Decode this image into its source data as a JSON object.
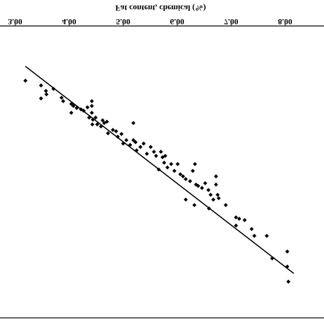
{
  "chart_data": {
    "type": "scatter",
    "title": "Fat content, chemical (%)",
    "x": [
      3.19,
      3.48,
      3.57,
      3.58,
      3.48,
      3.71,
      3.86,
      3.89,
      4.04,
      4.08,
      4.14,
      4.04,
      4.22,
      4.27,
      4.34,
      4.42,
      4.42,
      4.42,
      4.37,
      4.44,
      4.49,
      4.43,
      4.52,
      4.62,
      4.65,
      4.7,
      4.59,
      4.72,
      4.81,
      4.87,
      4.9,
      4.97,
      5.0,
      5.06,
      5.13,
      5.19,
      5.19,
      5.23,
      5.25,
      5.32,
      5.38,
      5.44,
      5.51,
      5.57,
      5.61,
      5.7,
      5.73,
      5.76,
      5.78,
      5.82,
      5.89,
      5.66,
      5.95,
      6.01,
      6.06,
      6.11,
      6.16,
      6.24,
      6.29,
      6.33,
      6.35,
      6.39,
      6.46,
      6.52,
      6.58,
      6.62,
      6.72,
      6.72,
      6.75,
      6.67,
      6.77,
      6.32,
      6.16,
      6.59,
      6.9,
      7.09,
      7.15,
      7.09,
      7.25,
      7.38,
      7.43,
      7.66,
      7.76,
      8.04,
      8.04,
      8.06
    ],
    "values": [
      347,
      340,
      332,
      327,
      321,
      335,
      322,
      317,
      313,
      310,
      307,
      300,
      305,
      303,
      308,
      317,
      310,
      300,
      293,
      290,
      293,
      283,
      283,
      289,
      285,
      287,
      280,
      270,
      275,
      273,
      265,
      269,
      255,
      260,
      253,
      285,
      260,
      257,
      245,
      250,
      255,
      240,
      250,
      243,
      237,
      243,
      235,
      227,
      237,
      220,
      225,
      217,
      215,
      225,
      210,
      207,
      203,
      200,
      215,
      225,
      195,
      193,
      190,
      197,
      187,
      180,
      207,
      195,
      180,
      173,
      175,
      165,
      173,
      160,
      165,
      147,
      145,
      135,
      143,
      130,
      120,
      120,
      87,
      97,
      75,
      53
    ],
    "color": "#000000",
    "fit_line": {
      "x": [
        3.19,
        8.16
      ],
      "values": [
        368,
        65
      ]
    },
    "xlim": [
      2.72,
      8.72
    ],
    "ylim": [
      0,
      465
    ],
    "xticks": [
      {
        "value": 3,
        "label": "3.00"
      },
      {
        "value": 4,
        "label": "4.00"
      },
      {
        "value": 5,
        "label": "5.00"
      },
      {
        "value": 6,
        "label": "6.00"
      },
      {
        "value": 7,
        "label": "7.00"
      },
      {
        "value": 8,
        "label": "8.00"
      }
    ]
  }
}
